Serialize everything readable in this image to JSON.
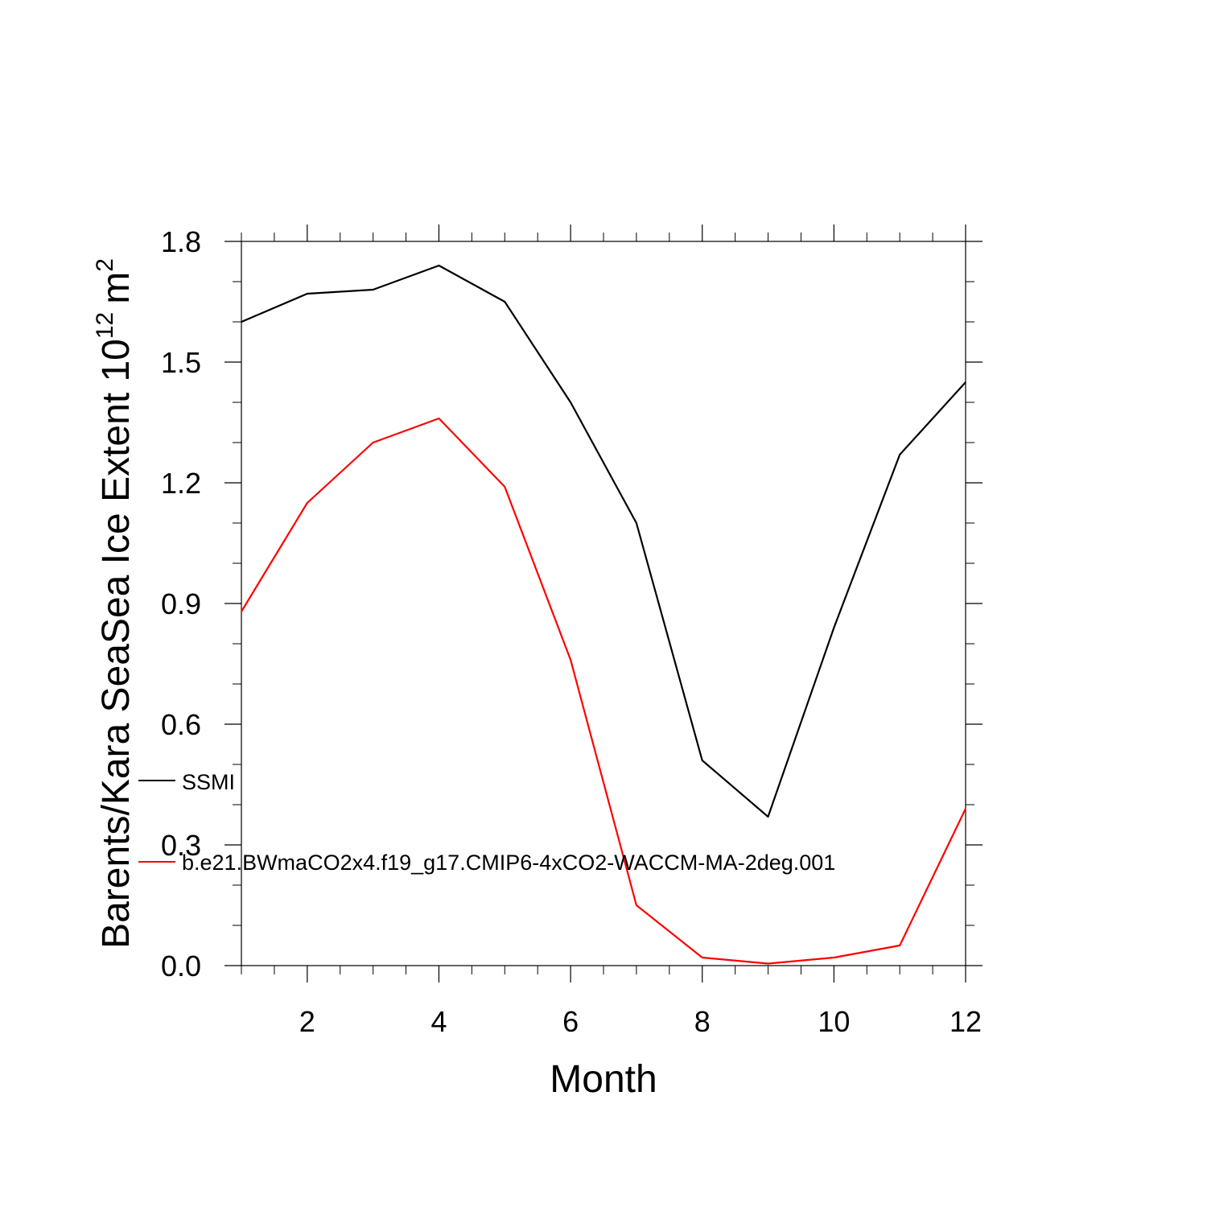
{
  "chart_data": {
    "type": "line",
    "xlabel": "Month",
    "ylabel": "Barents/Kara SeaSea Ice Extent 10",
    "ylabel_superscript": "12",
    "ylabel_unit": "m",
    "ylabel_unit_superscript": "2",
    "xlim": [
      1,
      12
    ],
    "ylim": [
      0.0,
      1.8
    ],
    "xticks": [
      2,
      4,
      6,
      8,
      10,
      12
    ],
    "xtick_labels": [
      "2",
      "4",
      "6",
      "8",
      "10",
      "12"
    ],
    "yticks": [
      0.0,
      0.3,
      0.6,
      0.9,
      1.2,
      1.5,
      1.8
    ],
    "ytick_labels": [
      "0.0",
      "0.3",
      "0.6",
      "0.9",
      "1.2",
      "1.5",
      "1.8"
    ],
    "x": [
      1,
      2,
      3,
      4,
      5,
      6,
      7,
      8,
      9,
      10,
      11,
      12
    ],
    "grid": false,
    "legend_position": "inside-left",
    "series": [
      {
        "name": "SSMI",
        "color": "#000000",
        "values": [
          1.6,
          1.67,
          1.68,
          1.74,
          1.65,
          1.4,
          1.1,
          0.51,
          0.37,
          0.84,
          1.27,
          1.45
        ]
      },
      {
        "name": "b.e21.BWmaCO2x4.f19_g17.CMIP6-4xCO2-WACCM-MA-2deg.001",
        "color": "#ff0000",
        "values": [
          0.88,
          1.15,
          1.3,
          1.36,
          1.19,
          0.76,
          0.15,
          0.02,
          0.005,
          0.02,
          0.05,
          0.39
        ]
      }
    ]
  }
}
